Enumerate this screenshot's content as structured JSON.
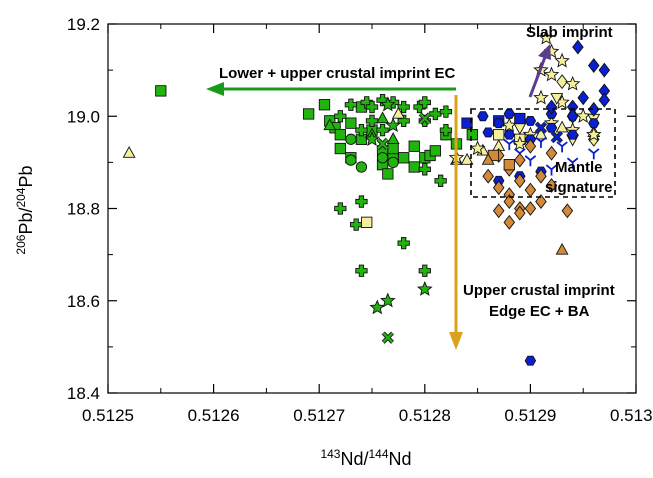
{
  "chart_data": {
    "type": "scatter",
    "xlabel": {
      "sup1": "143",
      "base1": "Nd/",
      "sup2": "144",
      "base2": "Nd"
    },
    "ylabel": {
      "sup1": "206",
      "base1": "Pb/",
      "sup2": "204",
      "base2": "Pb"
    },
    "xlim": [
      0.5125,
      0.513
    ],
    "ylim": [
      18.4,
      19.2
    ],
    "xticks": [
      0.5125,
      0.5126,
      0.5127,
      0.5128,
      0.5129,
      0.513
    ],
    "xtick_labels": [
      "0.5125",
      "0.5126",
      "0.5127",
      "0.5128",
      "0.5129",
      "0.5130"
    ],
    "yticks": [
      18.4,
      18.6,
      18.8,
      19.0,
      19.2
    ],
    "ytick_labels": [
      "18.4",
      "18.6",
      "18.8",
      "19.0",
      "19.2"
    ],
    "grid": false,
    "colors": {
      "green": "#22b40e",
      "yellow": "#f4ef9a",
      "blue": "#0a1fd0",
      "orange": "#d2893a",
      "arrow_green": "#1a9a1a",
      "arrow_orange": "#dba21c",
      "arrow_purple": "#5b3d8f"
    },
    "annotations": {
      "slab": "Slab imprint",
      "lower_upper": "Lower + upper crustal imprint EC",
      "mantle_line1": "Mantle",
      "mantle_line2": "signature",
      "upper_line1": "Upper crustal imprint",
      "upper_line2": "Edge EC + BA"
    },
    "series": [
      {
        "marker": "square",
        "color": "green",
        "points": [
          [
            0.51255,
            19.055
          ],
          [
            0.51269,
            19.005
          ],
          [
            0.512705,
            19.025
          ],
          [
            0.51271,
            18.99
          ],
          [
            0.512715,
            18.975
          ],
          [
            0.51272,
            18.96
          ],
          [
            0.51273,
            18.985
          ],
          [
            0.51274,
            19.02
          ],
          [
            0.51274,
            18.95
          ],
          [
            0.51275,
            18.97
          ],
          [
            0.51276,
            18.925
          ],
          [
            0.51276,
            18.895
          ],
          [
            0.51277,
            18.91
          ],
          [
            0.51277,
            18.93
          ],
          [
            0.512765,
            18.875
          ],
          [
            0.51278,
            18.91
          ],
          [
            0.51279,
            18.89
          ],
          [
            0.51279,
            18.935
          ],
          [
            0.5128,
            18.91
          ],
          [
            0.512805,
            18.915
          ],
          [
            0.51281,
            18.925
          ],
          [
            0.51282,
            18.96
          ],
          [
            0.51283,
            18.94
          ],
          [
            0.512845,
            18.96
          ],
          [
            0.51273,
            18.91
          ],
          [
            0.51272,
            18.93
          ]
        ]
      },
      {
        "marker": "plus",
        "color": "green",
        "points": [
          [
            0.51273,
            19.025
          ],
          [
            0.512745,
            19.03
          ],
          [
            0.51275,
            19.02
          ],
          [
            0.51276,
            19.035
          ],
          [
            0.51277,
            19.03
          ],
          [
            0.51278,
            19.02
          ],
          [
            0.512795,
            19.02
          ],
          [
            0.5128,
            19.03
          ],
          [
            0.51281,
            19.005
          ],
          [
            0.51282,
            19.01
          ],
          [
            0.51272,
            19.0
          ],
          [
            0.51275,
            18.99
          ],
          [
            0.51274,
            18.97
          ],
          [
            0.51276,
            18.97
          ],
          [
            0.51278,
            18.99
          ],
          [
            0.5128,
            18.99
          ],
          [
            0.51282,
            18.97
          ],
          [
            0.5128,
            18.885
          ],
          [
            0.512815,
            18.86
          ],
          [
            0.51272,
            18.8
          ],
          [
            0.51274,
            18.815
          ],
          [
            0.512735,
            18.765
          ],
          [
            0.51278,
            18.725
          ],
          [
            0.51274,
            18.665
          ],
          [
            0.5128,
            18.665
          ]
        ]
      },
      {
        "marker": "triangle",
        "color": "green",
        "points": [
          [
            0.51271,
            18.98
          ],
          [
            0.51275,
            18.96
          ],
          [
            0.51277,
            18.95
          ],
          [
            0.51276,
            18.995
          ]
        ]
      },
      {
        "marker": "circle",
        "color": "green",
        "points": [
          [
            0.51273,
            18.95
          ],
          [
            0.51274,
            18.89
          ],
          [
            0.51276,
            18.91
          ],
          [
            0.51277,
            18.9
          ],
          [
            0.51273,
            18.905
          ]
        ]
      },
      {
        "marker": "star",
        "color": "green",
        "points": [
          [
            0.512765,
            19.025
          ],
          [
            0.51277,
            18.98
          ],
          [
            0.512755,
            18.585
          ],
          [
            0.512765,
            18.6
          ],
          [
            0.5128,
            18.625
          ],
          [
            0.51275,
            18.95
          ]
        ]
      },
      {
        "marker": "x",
        "color": "green",
        "points": [
          [
            0.5128,
            18.995
          ],
          [
            0.51276,
            18.94
          ],
          [
            0.512765,
            18.52
          ]
        ]
      },
      {
        "marker": "triangle",
        "color": "yellow",
        "points": [
          [
            0.51252,
            18.92
          ],
          [
            0.512775,
            19.005
          ],
          [
            0.51283,
            18.905
          ],
          [
            0.51284,
            18.905
          ],
          [
            0.512855,
            18.925
          ],
          [
            0.51287,
            18.935
          ],
          [
            0.51289,
            18.95
          ],
          [
            0.51291,
            18.96
          ],
          [
            0.51293,
            18.975
          ],
          [
            0.51296,
            18.965
          ]
        ]
      },
      {
        "marker": "square",
        "color": "yellow",
        "points": [
          [
            0.512745,
            18.77
          ],
          [
            0.51287,
            18.96
          ],
          [
            0.51289,
            18.95
          ]
        ]
      },
      {
        "marker": "diamond",
        "color": "yellow",
        "points": [
          [
            0.51296,
            18.95
          ],
          [
            0.51293,
            19.075
          ]
        ]
      },
      {
        "marker": "star",
        "color": "yellow",
        "points": [
          [
            0.512915,
            19.17
          ],
          [
            0.51292,
            19.14
          ],
          [
            0.51293,
            19.12
          ],
          [
            0.51291,
            19.1
          ],
          [
            0.51292,
            19.09
          ],
          [
            0.51294,
            19.07
          ],
          [
            0.51291,
            19.04
          ],
          [
            0.51293,
            19.03
          ],
          [
            0.51295,
            19.0
          ],
          [
            0.51292,
            18.985
          ],
          [
            0.51294,
            18.97
          ],
          [
            0.51296,
            18.96
          ],
          [
            0.5129,
            18.96
          ],
          [
            0.51289,
            18.94
          ],
          [
            0.51288,
            18.98
          ],
          [
            0.51283,
            18.91
          ],
          [
            0.51285,
            18.93
          ]
        ]
      },
      {
        "marker": "triangle-down",
        "color": "yellow",
        "points": [
          [
            0.512925,
            19.04
          ],
          [
            0.51296,
            18.995
          ],
          [
            0.51294,
            18.95
          ],
          [
            0.51289,
            18.975
          ]
        ]
      },
      {
        "marker": "square",
        "color": "blue",
        "points": [
          [
            0.51284,
            18.985
          ],
          [
            0.51287,
            18.99
          ],
          [
            0.51289,
            18.995
          ]
        ]
      },
      {
        "marker": "hexagon",
        "color": "blue",
        "points": [
          [
            0.512855,
            19.0
          ],
          [
            0.51287,
            18.985
          ],
          [
            0.51288,
            19.005
          ],
          [
            0.5129,
            18.99
          ],
          [
            0.51292,
            19.005
          ],
          [
            0.51294,
            19.0
          ],
          [
            0.51286,
            18.965
          ],
          [
            0.51288,
            18.96
          ],
          [
            0.5129,
            18.95
          ],
          [
            0.51292,
            18.975
          ],
          [
            0.51294,
            18.96
          ],
          [
            0.51296,
            18.985
          ],
          [
            0.51287,
            18.86
          ],
          [
            0.51289,
            18.87
          ],
          [
            0.51291,
            18.88
          ],
          [
            0.5129,
            18.47
          ]
        ]
      },
      {
        "marker": "diamond",
        "color": "blue",
        "points": [
          [
            0.512945,
            19.15
          ],
          [
            0.51296,
            19.11
          ],
          [
            0.51297,
            19.1
          ],
          [
            0.51297,
            19.055
          ],
          [
            0.51295,
            19.04
          ],
          [
            0.51297,
            19.035
          ],
          [
            0.51294,
            19.02
          ],
          [
            0.51296,
            19.015
          ],
          [
            0.51294,
            19.0
          ],
          [
            0.51292,
            19.02
          ]
        ]
      },
      {
        "marker": "tri-down",
        "color": "blue",
        "points": [
          [
            0.51288,
            18.94
          ],
          [
            0.51289,
            18.92
          ],
          [
            0.5129,
            18.905
          ],
          [
            0.51292,
            18.885
          ],
          [
            0.51294,
            18.9
          ],
          [
            0.51296,
            18.92
          ],
          [
            0.51293,
            18.935
          ],
          [
            0.51291,
            18.945
          ]
        ]
      },
      {
        "marker": "x",
        "color": "blue",
        "points": [
          [
            0.51291,
            18.975
          ],
          [
            0.512925,
            18.955
          ]
        ]
      },
      {
        "marker": "diamond",
        "color": "orange",
        "points": [
          [
            0.51287,
            18.915
          ],
          [
            0.51289,
            18.905
          ],
          [
            0.5129,
            18.935
          ],
          [
            0.51288,
            18.885
          ],
          [
            0.51289,
            18.86
          ],
          [
            0.51287,
            18.845
          ],
          [
            0.51288,
            18.83
          ],
          [
            0.5129,
            18.84
          ],
          [
            0.51291,
            18.815
          ],
          [
            0.51289,
            18.8
          ],
          [
            0.51288,
            18.815
          ],
          [
            0.51287,
            18.795
          ],
          [
            0.51289,
            18.79
          ],
          [
            0.5129,
            18.8
          ],
          [
            0.51288,
            18.77
          ],
          [
            0.51286,
            18.87
          ],
          [
            0.51291,
            18.87
          ],
          [
            0.51292,
            18.92
          ],
          [
            0.51292,
            18.85
          ],
          [
            0.512935,
            18.795
          ]
        ]
      },
      {
        "marker": "square",
        "color": "orange",
        "points": [
          [
            0.512865,
            18.915
          ],
          [
            0.51288,
            18.895
          ]
        ]
      },
      {
        "marker": "triangle",
        "color": "orange",
        "points": [
          [
            0.51286,
            18.905
          ],
          [
            0.51293,
            18.71
          ]
        ]
      }
    ]
  }
}
